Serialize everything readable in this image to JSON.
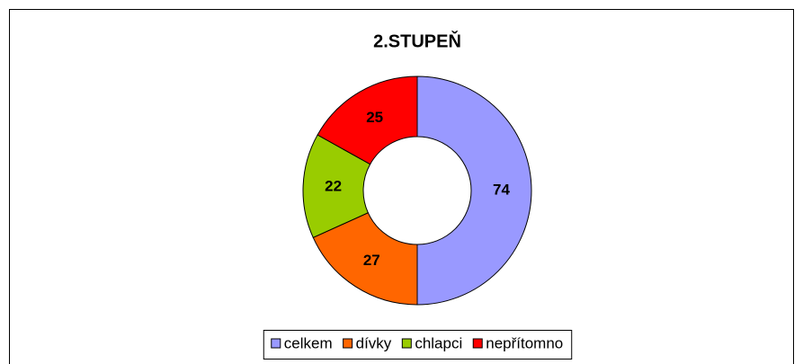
{
  "chart_data": {
    "type": "donut",
    "title": "2.STUPEŇ",
    "categories": [
      "celkem",
      "dívky",
      "chlapci",
      "nepřítomno"
    ],
    "values": [
      74,
      27,
      22,
      25
    ],
    "colors": [
      "#9999ff",
      "#ff6600",
      "#99cc00",
      "#ff0000"
    ],
    "legend": "bottom"
  }
}
